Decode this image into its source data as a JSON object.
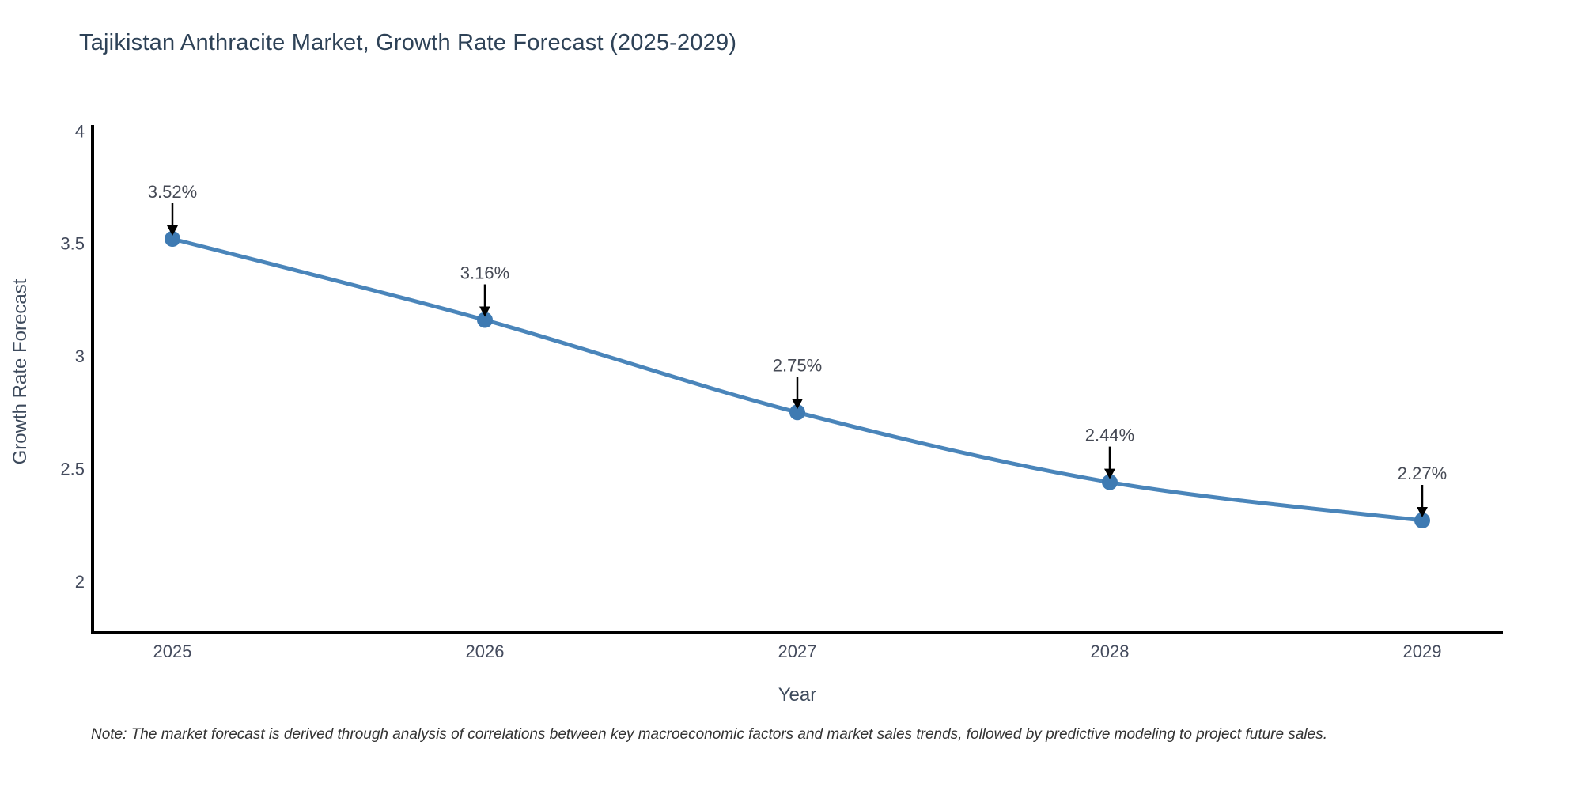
{
  "chart": {
    "title": "Tajikistan Anthracite Market, Growth Rate Forecast (2025-2029)",
    "note": "Note: The market forecast is derived through analysis of correlations between key macroeconomic factors and market sales trends, followed by predictive modeling to project future sales."
  },
  "chart_data": {
    "type": "line",
    "title": "Tajikistan Anthracite Market, Growth Rate Forecast (2025-2029)",
    "xlabel": "Year",
    "ylabel": "Growth Rate Forecast",
    "x": [
      2025,
      2026,
      2027,
      2028,
      2029
    ],
    "series": [
      {
        "name": "Growth Rate Forecast",
        "values": [
          3.52,
          3.16,
          2.75,
          2.44,
          2.27
        ]
      }
    ],
    "point_labels": [
      "3.52%",
      "3.16%",
      "2.75%",
      "2.44%",
      "2.27%"
    ],
    "x_tick_labels": [
      "2025",
      "2026",
      "2027",
      "2028",
      "2029"
    ],
    "y_ticks": [
      2,
      2.5,
      3,
      3.5,
      4
    ],
    "y_tick_labels": [
      "2",
      "2.5",
      "3",
      "3.5",
      "4"
    ],
    "xlim": [
      2024.74,
      2029.26
    ],
    "ylim": [
      1.77,
      4.03
    ],
    "grid": false,
    "legend_position": "none",
    "line_shape": "spline",
    "colors": {
      "line": "#4a85ba",
      "marker": "#3e7ab2",
      "axis": "#000000",
      "annotation_arrow": "#000000",
      "annotation_text": "#464a55",
      "tick_text": "#444b5d",
      "title_text": "#2e4257",
      "background": "#ffffff"
    },
    "note": "Note: The market forecast is derived through analysis of correlations between key macroeconomic factors and market sales trends, followed by predictive modeling to project future sales."
  }
}
